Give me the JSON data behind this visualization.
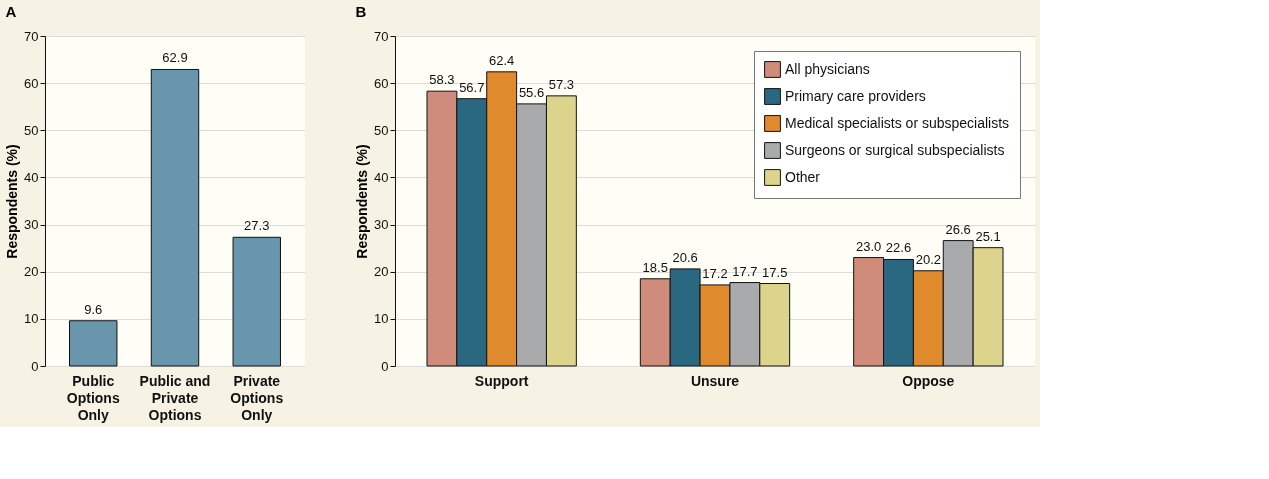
{
  "chart_data": [
    {
      "type": "bar",
      "title": "A",
      "ylabel": "Respondents (%)",
      "categories": [
        "Public\nOptions\nOnly",
        "Public and\nPrivate\nOptions",
        "Private\nOptions\nOnly"
      ],
      "values": [
        9.6,
        62.9,
        27.3
      ],
      "color": "#6a96ad",
      "ylim": [
        0,
        70
      ],
      "yticks": [
        0,
        10,
        20,
        30,
        40,
        50,
        60,
        70
      ],
      "grid": "y",
      "data_labels": true
    },
    {
      "type": "bar",
      "title": "B",
      "ylabel": "Respondents (%)",
      "categories": [
        "Support",
        "Unsure",
        "Oppose"
      ],
      "series": [
        {
          "name": "All physicians",
          "color": "#cf8c7a",
          "values": [
            58.3,
            18.5,
            23.0
          ],
          "value_labels": [
            "58.3",
            "18.5",
            "23.0"
          ]
        },
        {
          "name": "Primary care providers",
          "color": "#2a6882",
          "values": [
            56.7,
            20.6,
            22.6
          ]
        },
        {
          "name": "Medical specialists or subspecialists",
          "color": "#e08a2e",
          "values": [
            62.4,
            17.2,
            20.2
          ]
        },
        {
          "name": "Surgeons or surgical subspecialists",
          "color": "#a9aaac",
          "values": [
            55.6,
            17.7,
            26.6
          ]
        },
        {
          "name": "Other",
          "color": "#dcd48c",
          "values": [
            57.3,
            17.5,
            25.1
          ]
        }
      ],
      "ylim": [
        0,
        70
      ],
      "yticks": [
        0,
        10,
        20,
        30,
        40,
        50,
        60,
        70
      ],
      "grid": "y",
      "legend": "top right",
      "data_labels": true
    }
  ]
}
